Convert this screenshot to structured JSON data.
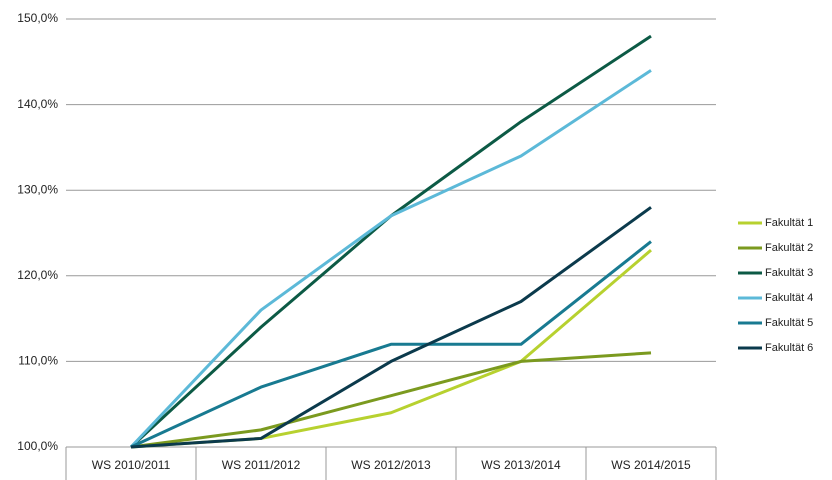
{
  "chart_data": {
    "type": "line",
    "categories": [
      "WS 2010/2011",
      "WS 2011/2012",
      "WS 2012/2013",
      "WS 2013/2014",
      "WS 2014/2015"
    ],
    "series": [
      {
        "name": "Fakultät 1",
        "color": "#b7d12f",
        "values": [
          100,
          101,
          104,
          110,
          123
        ]
      },
      {
        "name": "Fakultät 2",
        "color": "#7b9a1f",
        "values": [
          100,
          102,
          106,
          110,
          111
        ]
      },
      {
        "name": "Fakultät 3",
        "color": "#0c5a45",
        "values": [
          100,
          114,
          127,
          138,
          148
        ]
      },
      {
        "name": "Fakultät 4",
        "color": "#5cb9d8",
        "values": [
          100,
          116,
          127,
          134,
          144
        ]
      },
      {
        "name": "Fakultät 5",
        "color": "#187a91",
        "values": [
          100,
          107,
          112,
          112,
          124
        ]
      },
      {
        "name": "Fakultät 6",
        "color": "#0b3a4c",
        "values": [
          100,
          101,
          110,
          117,
          128
        ]
      }
    ],
    "ylim": [
      100,
      150
    ],
    "yticks": [
      {
        "value": 100,
        "label": "100,0%"
      },
      {
        "value": 110,
        "label": "110,0%"
      },
      {
        "value": 120,
        "label": "120,0%"
      },
      {
        "value": 130,
        "label": "130,0%"
      },
      {
        "value": 140,
        "label": "140,0%"
      },
      {
        "value": 150,
        "label": "150,0%"
      }
    ],
    "grid": true,
    "legend": "right"
  }
}
